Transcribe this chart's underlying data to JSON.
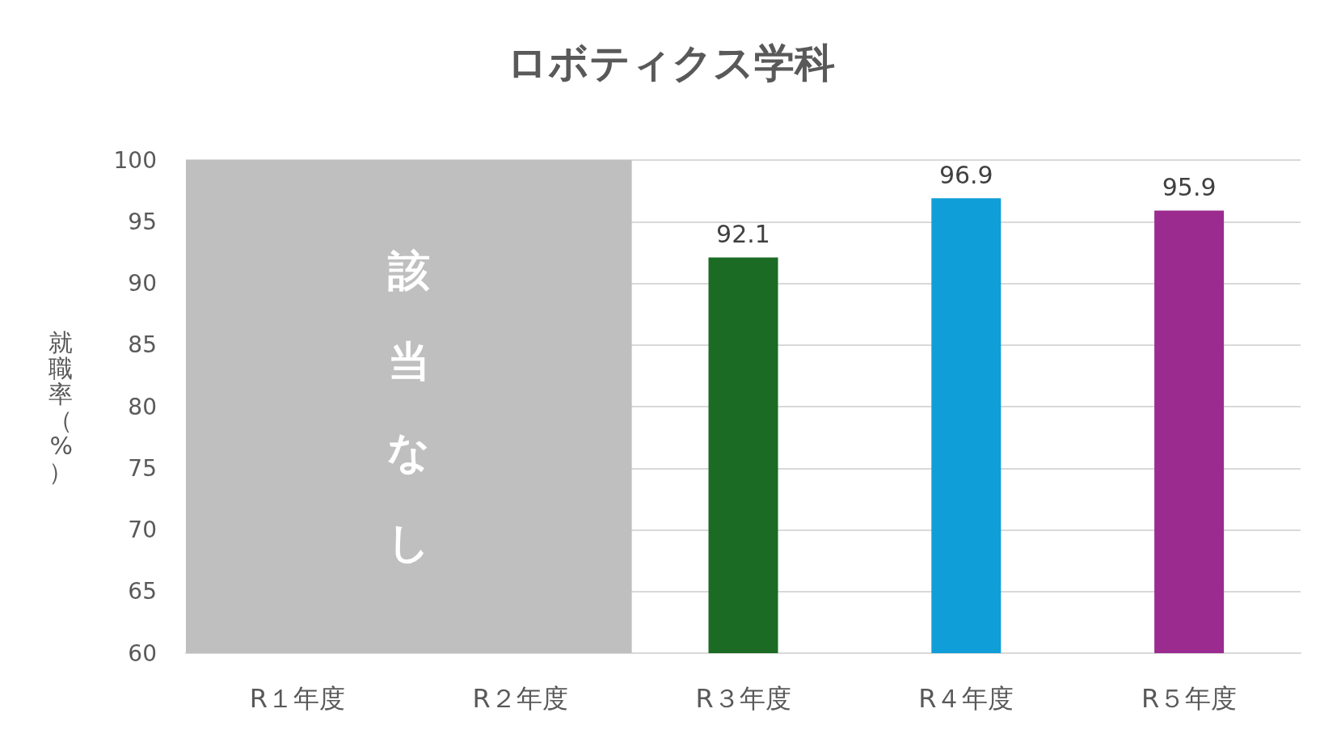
{
  "chart_data": {
    "type": "bar",
    "title": "ロボティクス学科",
    "ylabel": "就職率（%）",
    "categories": [
      "R１年度",
      "R２年度",
      "R３年度",
      "R４年度",
      "R５年度"
    ],
    "values": [
      null,
      null,
      92.1,
      96.9,
      95.9
    ],
    "colors": [
      "#1b6b24",
      "#1b6b24",
      "#1b6b24",
      "#0f9ed8",
      "#9b2b8f"
    ],
    "ylim": [
      60,
      100
    ],
    "yticks": [
      60,
      65,
      70,
      75,
      80,
      85,
      90,
      95,
      100
    ],
    "bands": [
      {
        "axis": "x",
        "from": "R１年度",
        "to": "R２年度",
        "label": "該当なし",
        "color": "#bfbfbf"
      }
    ],
    "data_labels": true,
    "grid": "y"
  }
}
